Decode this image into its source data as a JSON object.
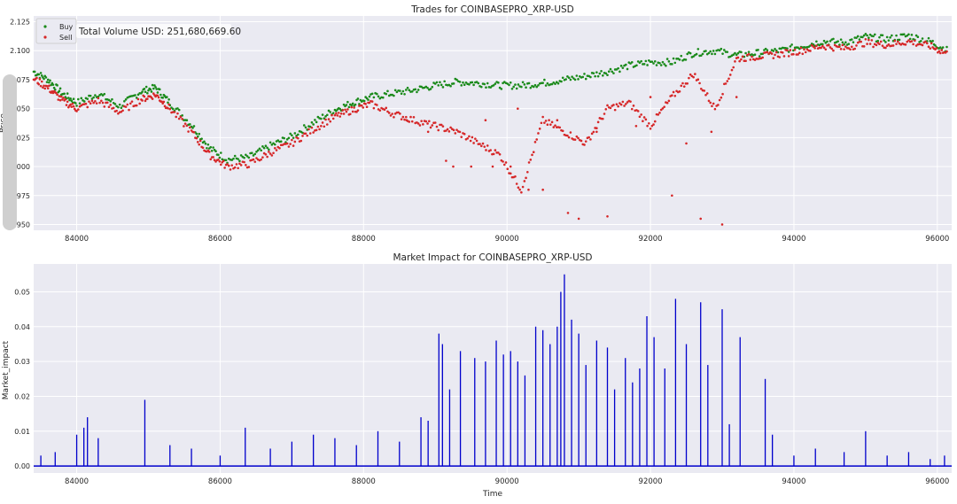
{
  "chart_data": [
    {
      "type": "scatter",
      "title": "Trades for COINBASEPRO_XRP-USD",
      "xlabel": "",
      "ylabel": "Price",
      "xlim": [
        83400,
        96200
      ],
      "ylim": [
        1.945,
        2.13
      ],
      "x_ticks": [
        "84000",
        "86000",
        "88000",
        "90000",
        "92000",
        "94000",
        "96000"
      ],
      "y_ticks": [
        "1.950",
        "1.975",
        "2.000",
        "2.025",
        "2.050",
        "2.075",
        "2.100",
        "2.125"
      ],
      "annotation": "Total Volume USD: 251,680,669.60",
      "legend_position": "top-left",
      "grid": true,
      "series": [
        {
          "name": "Buy",
          "color": "#1a8a1a",
          "x": [
            83400,
            83600,
            83800,
            84000,
            84300,
            84600,
            84900,
            85100,
            85300,
            85600,
            85850,
            86100,
            86400,
            86700,
            87000,
            87300,
            87600,
            87850,
            88100,
            88400,
            88700,
            89000,
            89300,
            89600,
            89900,
            90200,
            90500,
            90800,
            91100,
            91400,
            91700,
            92000,
            92300,
            92600,
            92900,
            93200,
            93500,
            93800,
            94100,
            94400,
            94700,
            95000,
            95300,
            95600,
            95900,
            96150
          ],
          "y": [
            2.082,
            2.075,
            2.063,
            2.055,
            2.063,
            2.052,
            2.065,
            2.068,
            2.055,
            2.036,
            2.016,
            2.006,
            2.008,
            2.018,
            2.026,
            2.038,
            2.049,
            2.055,
            2.06,
            2.063,
            2.066,
            2.07,
            2.073,
            2.072,
            2.07,
            2.07,
            2.072,
            2.075,
            2.078,
            2.082,
            2.087,
            2.09,
            2.09,
            2.098,
            2.1,
            2.096,
            2.098,
            2.1,
            2.104,
            2.108,
            2.107,
            2.112,
            2.11,
            2.113,
            2.108,
            2.1
          ]
        },
        {
          "name": "Sell",
          "color": "#d62728",
          "x": [
            83400,
            83600,
            83800,
            84000,
            84300,
            84600,
            84900,
            85100,
            85300,
            85600,
            85850,
            86100,
            86400,
            86700,
            87000,
            87300,
            87600,
            87850,
            88100,
            88400,
            88700,
            89000,
            89300,
            89600,
            89900,
            90200,
            90500,
            90800,
            91100,
            91400,
            91700,
            92000,
            92300,
            92600,
            92900,
            93200,
            93500,
            93800,
            94100,
            94400,
            94700,
            95000,
            95300,
            95600,
            95900,
            96150
          ],
          "y": [
            2.076,
            2.068,
            2.057,
            2.05,
            2.057,
            2.047,
            2.058,
            2.062,
            2.05,
            2.03,
            2.01,
            2.0,
            2.002,
            2.012,
            2.02,
            2.032,
            2.043,
            2.049,
            2.054,
            2.046,
            2.04,
            2.035,
            2.03,
            2.02,
            2.01,
            1.98,
            2.04,
            2.03,
            2.02,
            2.05,
            2.055,
            2.035,
            2.06,
            2.08,
            2.05,
            2.093,
            2.095,
            2.097,
            2.1,
            2.104,
            2.102,
            2.107,
            2.105,
            2.108,
            2.104,
            2.097
          ]
        }
      ],
      "scattered_sells": [
        {
          "x": 89250,
          "y": 2.0
        },
        {
          "x": 89500,
          "y": 2.0
        },
        {
          "x": 89800,
          "y": 2.0
        },
        {
          "x": 90050,
          "y": 2.0
        },
        {
          "x": 89150,
          "y": 2.005
        },
        {
          "x": 90300,
          "y": 1.98
        },
        {
          "x": 90500,
          "y": 1.98
        },
        {
          "x": 90850,
          "y": 1.96
        },
        {
          "x": 91000,
          "y": 1.955
        },
        {
          "x": 91400,
          "y": 1.957
        },
        {
          "x": 92700,
          "y": 1.955
        },
        {
          "x": 93000,
          "y": 1.95
        },
        {
          "x": 92300,
          "y": 1.975
        },
        {
          "x": 92850,
          "y": 2.03
        },
        {
          "x": 93200,
          "y": 2.06
        },
        {
          "x": 89700,
          "y": 2.04
        },
        {
          "x": 90150,
          "y": 2.05
        },
        {
          "x": 90700,
          "y": 2.04
        },
        {
          "x": 91250,
          "y": 2.03
        },
        {
          "x": 91800,
          "y": 2.035
        },
        {
          "x": 92000,
          "y": 2.06
        },
        {
          "x": 92500,
          "y": 2.02
        },
        {
          "x": 88900,
          "y": 2.03
        },
        {
          "x": 88600,
          "y": 2.04
        }
      ]
    },
    {
      "type": "bar",
      "title": "Market Impact for COINBASEPRO_XRP-USD",
      "xlabel": "Time",
      "ylabel": "Market_impact",
      "xlim": [
        83400,
        96200
      ],
      "ylim": [
        -0.002,
        0.058
      ],
      "x_ticks": [
        "84000",
        "86000",
        "88000",
        "90000",
        "92000",
        "94000",
        "96000"
      ],
      "y_ticks": [
        "0.00",
        "0.01",
        "0.02",
        "0.03",
        "0.04",
        "0.05"
      ],
      "color": "#0000cc",
      "grid": true,
      "x": [
        83500,
        83700,
        84000,
        84100,
        84150,
        84300,
        84950,
        85300,
        85600,
        86000,
        86350,
        86700,
        87000,
        87300,
        87600,
        87900,
        88200,
        88500,
        88800,
        88900,
        89050,
        89100,
        89200,
        89350,
        89550,
        89700,
        89850,
        89950,
        90050,
        90150,
        90250,
        90400,
        90500,
        90600,
        90700,
        90750,
        90800,
        90900,
        91000,
        91100,
        91250,
        91400,
        91500,
        91650,
        91750,
        91850,
        91950,
        92050,
        92200,
        92350,
        92500,
        92700,
        92800,
        93000,
        93100,
        93250,
        93600,
        93700,
        94000,
        94300,
        94700,
        95000,
        95300,
        95600,
        95900,
        96100
      ],
      "values": [
        0.003,
        0.004,
        0.009,
        0.011,
        0.014,
        0.008,
        0.019,
        0.006,
        0.005,
        0.003,
        0.011,
        0.005,
        0.007,
        0.009,
        0.008,
        0.006,
        0.01,
        0.007,
        0.014,
        0.013,
        0.038,
        0.035,
        0.022,
        0.033,
        0.031,
        0.03,
        0.036,
        0.032,
        0.033,
        0.03,
        0.026,
        0.04,
        0.039,
        0.035,
        0.04,
        0.05,
        0.055,
        0.042,
        0.038,
        0.029,
        0.036,
        0.034,
        0.022,
        0.031,
        0.024,
        0.028,
        0.043,
        0.037,
        0.028,
        0.048,
        0.035,
        0.047,
        0.029,
        0.045,
        0.012,
        0.037,
        0.025,
        0.009,
        0.003,
        0.005,
        0.004,
        0.01,
        0.003,
        0.004,
        0.002,
        0.003
      ]
    }
  ],
  "legend_labels": {
    "buy": "Buy",
    "sell": "Sell"
  }
}
